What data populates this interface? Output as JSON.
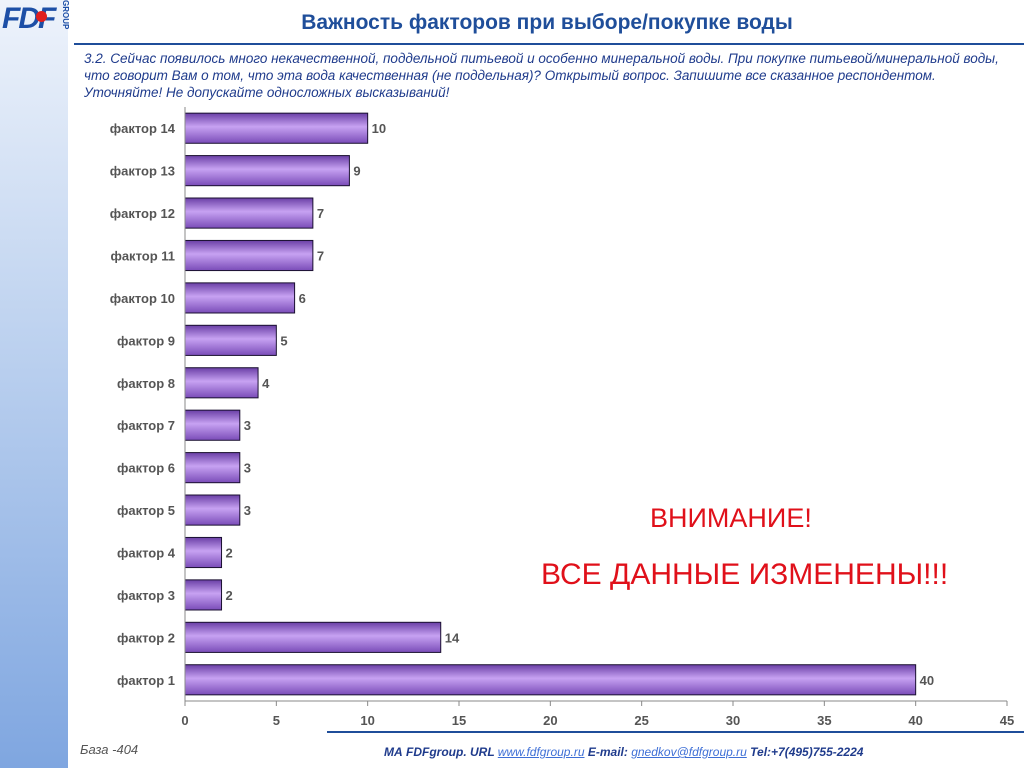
{
  "logo": {
    "text": "FDF",
    "sub": "GROUP"
  },
  "title": "Важность факторов при выборе/покупке воды",
  "question": "3.2. Сейчас появилось много некачественной, поддельной питьевой и особенно минеральной воды. При покупке питьевой/минеральной воды, что говорит Вам о том, что эта вода качественная (не поддельная)?  Открытый вопрос. Запишите все сказанное респондентом. Уточняйте! Не допускайте односложных высказываний!",
  "warning": {
    "line1": "ВНИМАНИЕ!",
    "line2": "ВСЕ ДАННЫЕ ИЗМЕНЕНЫ!!!"
  },
  "base": "База -404",
  "footer": {
    "prefix": "МА FDFgroup. URL",
    "url": "www.fdfgroup.ru",
    "email_label": "E-mail:",
    "email": "gnedkov@fdfgroup.ru",
    "tel": "Tel:+7(495)755-2224"
  },
  "colors": {
    "bar": "#a87be0",
    "bar_dark": "#6a3fa6",
    "title": "#1f4e9a",
    "warning": "#e0101a"
  },
  "chart_data": {
    "type": "bar",
    "orientation": "horizontal",
    "categories": [
      "фактор 14",
      "фактор 13",
      "фактор 12",
      "фактор 11",
      "фактор 10",
      "фактор 9",
      "фактор 8",
      "фактор 7",
      "фактор 6",
      "фактор 5",
      "фактор 4",
      "фактор 3",
      "фактор 2",
      "фактор 1"
    ],
    "values": [
      10,
      9,
      7,
      7,
      6,
      5,
      4,
      3,
      3,
      3,
      2,
      2,
      14,
      40
    ],
    "xlim": [
      0,
      45
    ],
    "xticks": [
      0,
      5,
      10,
      15,
      20,
      25,
      30,
      35,
      40,
      45
    ],
    "grid": false,
    "data_labels": true
  }
}
